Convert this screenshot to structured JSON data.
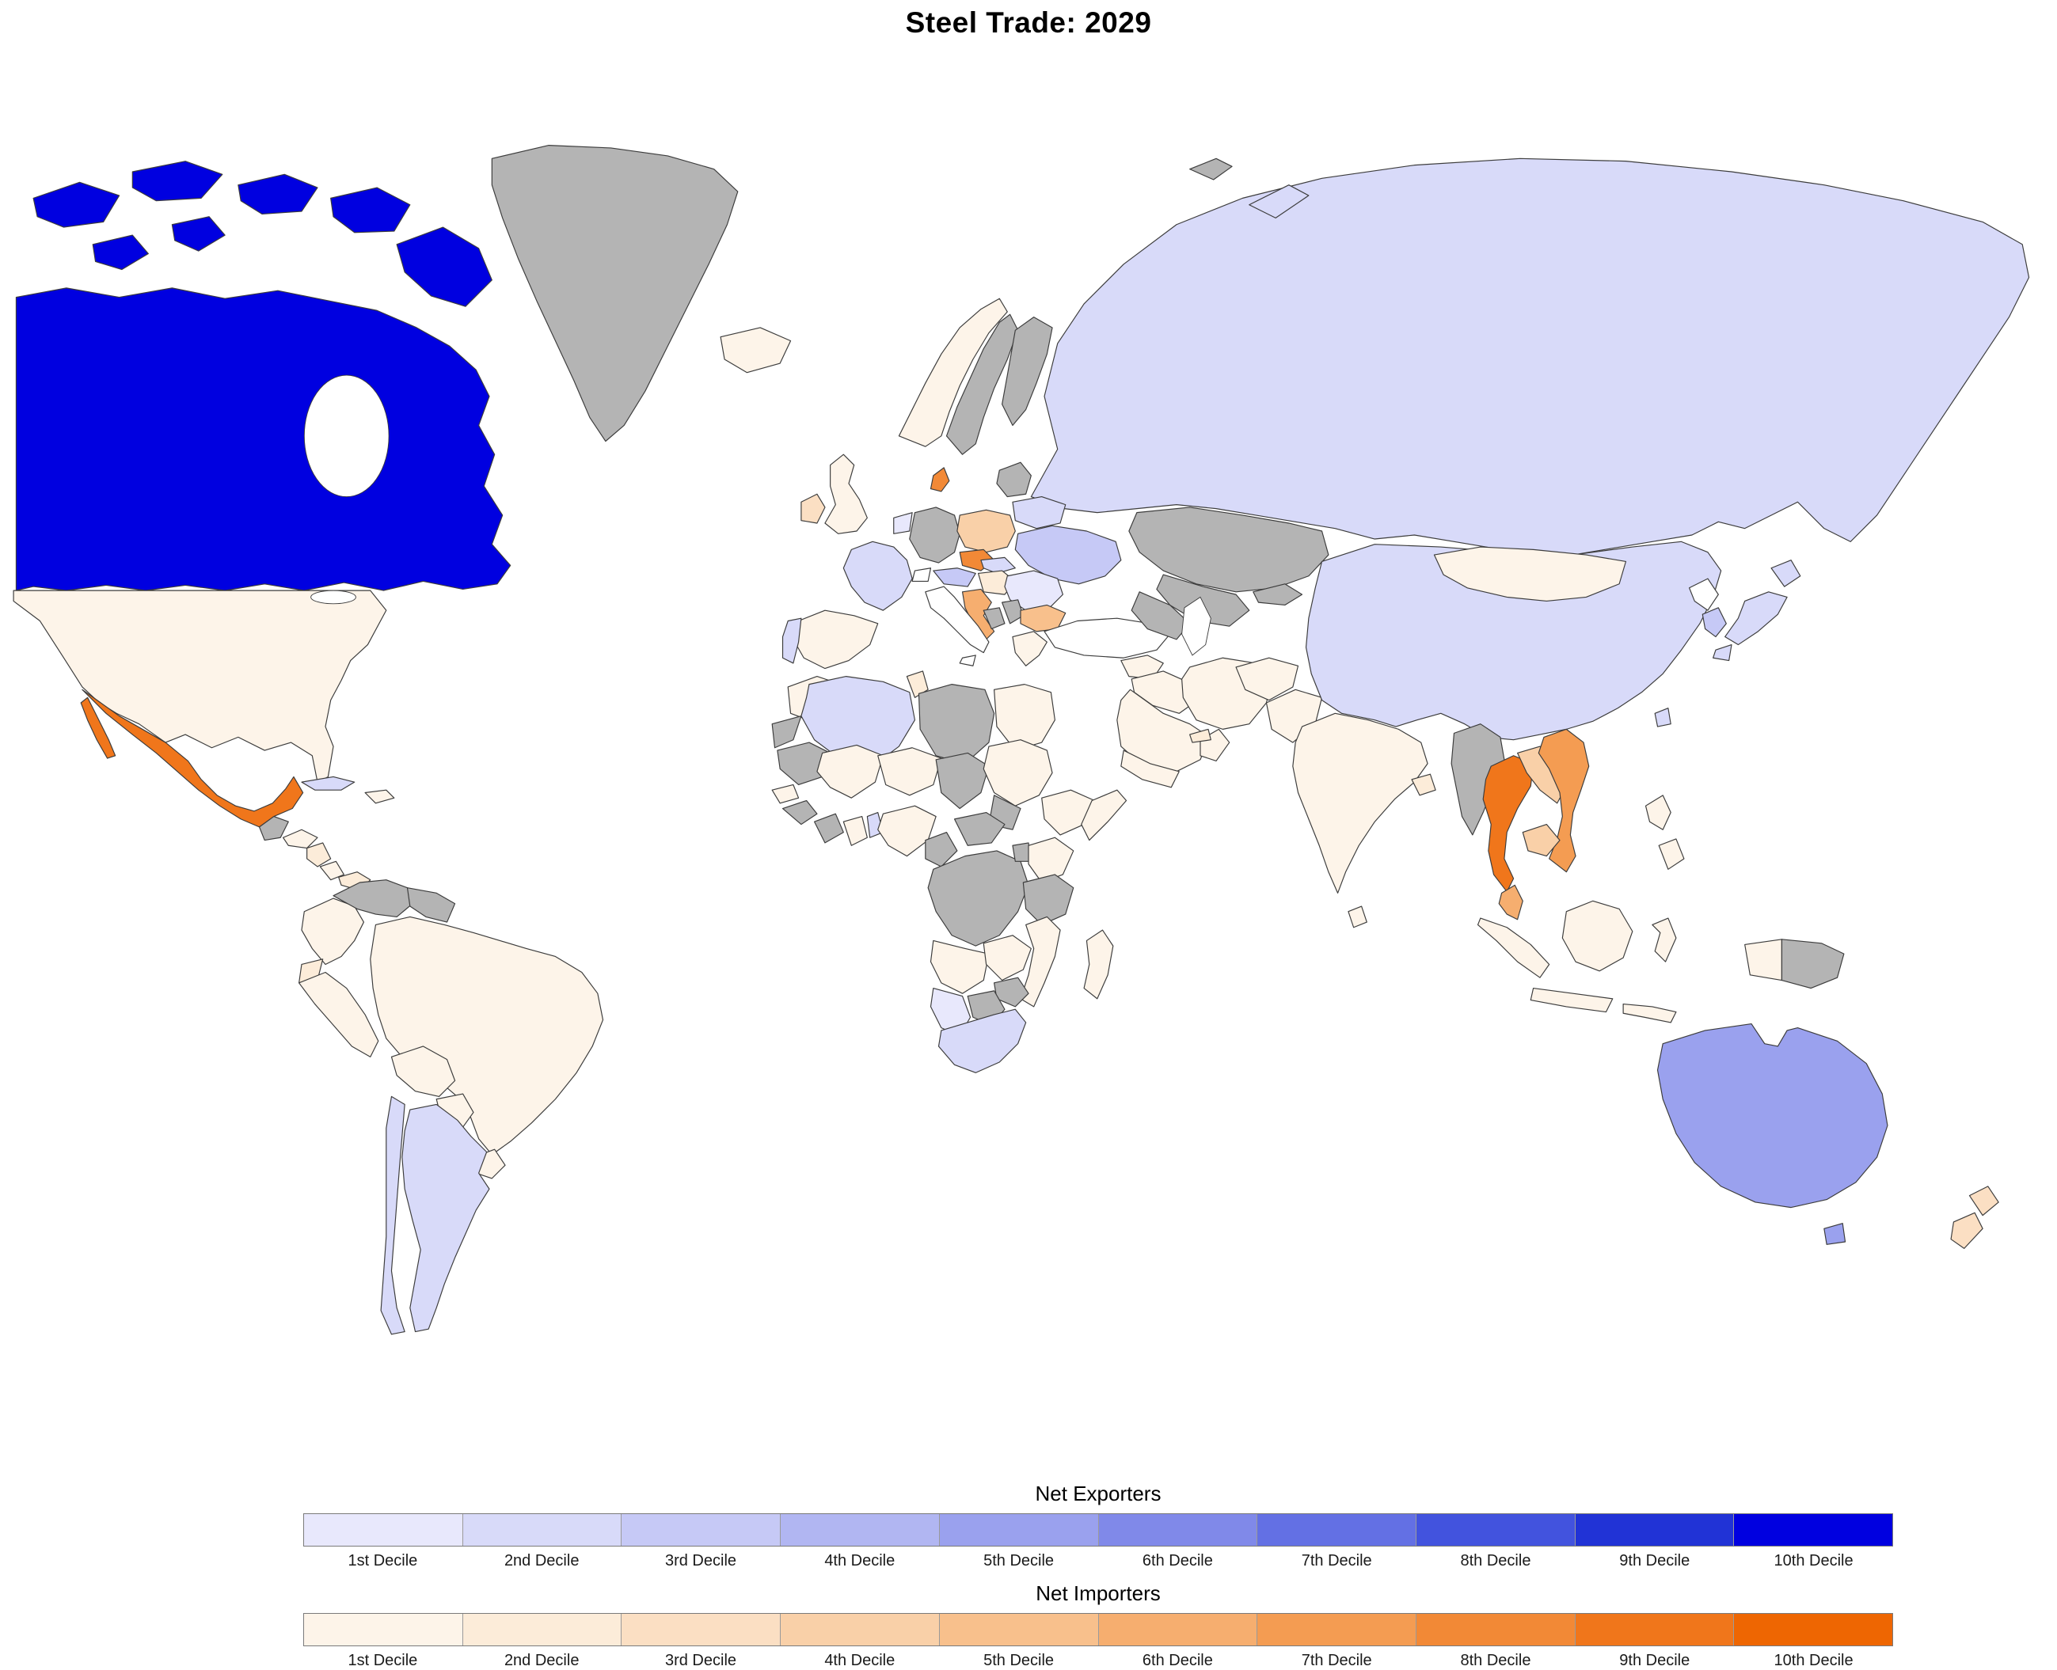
{
  "title": "Steel Trade: 2029",
  "legend": {
    "exporters": {
      "title": "Net Exporters",
      "deciles": [
        "1st Decile",
        "2nd Decile",
        "3rd Decile",
        "4th Decile",
        "5th Decile",
        "6th Decile",
        "7th Decile",
        "8th Decile",
        "9th Decile",
        "10th Decile"
      ],
      "colors": [
        "#e8e8fc",
        "#d8daf9",
        "#c6c9f6",
        "#b1b6f2",
        "#9aa1ee",
        "#8089e9",
        "#6370e4",
        "#4253de",
        "#2133d6",
        "#0000e0"
      ]
    },
    "importers": {
      "title": "Net Importers",
      "deciles": [
        "1st Decile",
        "2nd Decile",
        "3rd Decile",
        "4th Decile",
        "5th Decile",
        "6th Decile",
        "7th Decile",
        "8th Decile",
        "9th Decile",
        "10th Decile"
      ],
      "colors": [
        "#fdf4e9",
        "#fcecd9",
        "#fbdfc3",
        "#f9d0a8",
        "#f8c08c",
        "#f6ae6f",
        "#f49c52",
        "#f28936",
        "#f0761b",
        "#ee6602"
      ]
    }
  },
  "map": {
    "no_data_color": "#b4b4b4",
    "none_color": "#ffffff",
    "ocean_color": "#ffffff",
    "border_color": "#3c3c3c",
    "countries": {
      "canada": {
        "name": "Canada",
        "category": "exporter",
        "decile": 10
      },
      "russia": {
        "name": "Russia",
        "category": "exporter",
        "decile": 2
      },
      "china": {
        "name": "China",
        "category": "exporter",
        "decile": 2
      },
      "japan": {
        "name": "Japan",
        "category": "exporter",
        "decile": 2
      },
      "south-korea": {
        "name": "South Korea",
        "category": "exporter",
        "decile": 3
      },
      "taiwan": {
        "name": "Taiwan",
        "category": "exporter",
        "decile": 2
      },
      "australia": {
        "name": "Australia",
        "category": "exporter",
        "decile": 5
      },
      "argentina": {
        "name": "Argentina",
        "category": "exporter",
        "decile": 2
      },
      "chile": {
        "name": "Chile",
        "category": "exporter",
        "decile": 2
      },
      "cuba": {
        "name": "Cuba",
        "category": "exporter",
        "decile": 2
      },
      "france": {
        "name": "France",
        "category": "exporter",
        "decile": 2
      },
      "netherlands": {
        "name": "Netherlands",
        "category": "exporter",
        "decile": 1
      },
      "portugal": {
        "name": "Portugal",
        "category": "exporter",
        "decile": 2
      },
      "austria": {
        "name": "Austria",
        "category": "exporter",
        "decile": 3
      },
      "slovakia": {
        "name": "Slovakia",
        "category": "exporter",
        "decile": 2
      },
      "belarus": {
        "name": "Belarus",
        "category": "exporter",
        "decile": 2
      },
      "ukraine": {
        "name": "Ukraine",
        "category": "exporter",
        "decile": 3
      },
      "romania": {
        "name": "Romania",
        "category": "exporter",
        "decile": 1
      },
      "algeria": {
        "name": "Algeria",
        "category": "exporter",
        "decile": 2
      },
      "namibia": {
        "name": "Namibia",
        "category": "exporter",
        "decile": 1
      },
      "south-africa": {
        "name": "South Africa",
        "category": "exporter",
        "decile": 2
      },
      "benin": {
        "name": "Benin",
        "category": "exporter",
        "decile": 2
      },
      "usa": {
        "name": "United States",
        "category": "importer",
        "decile": 1
      },
      "mexico": {
        "name": "Mexico",
        "category": "importer",
        "decile": 9
      },
      "honduras": {
        "name": "Honduras",
        "category": "importer",
        "decile": 1
      },
      "nicaragua": {
        "name": "Nicaragua",
        "category": "importer",
        "decile": 2
      },
      "costa-rica": {
        "name": "Costa Rica",
        "category": "importer",
        "decile": 1
      },
      "panama": {
        "name": "Panama",
        "category": "importer",
        "decile": 2
      },
      "dominican-republic": {
        "name": "Dominican Republic",
        "category": "importer",
        "decile": 1
      },
      "colombia": {
        "name": "Colombia",
        "category": "importer",
        "decile": 1
      },
      "ecuador": {
        "name": "Ecuador",
        "category": "importer",
        "decile": 2
      },
      "peru": {
        "name": "Peru",
        "category": "importer",
        "decile": 1
      },
      "brazil": {
        "name": "Brazil",
        "category": "importer",
        "decile": 1
      },
      "bolivia": {
        "name": "Bolivia",
        "category": "importer",
        "decile": 1
      },
      "paraguay": {
        "name": "Paraguay",
        "category": "importer",
        "decile": 1
      },
      "uruguay": {
        "name": "Uruguay",
        "category": "importer",
        "decile": 1
      },
      "iceland": {
        "name": "Iceland",
        "category": "importer",
        "decile": 1
      },
      "norway": {
        "name": "Norway",
        "category": "importer",
        "decile": 1
      },
      "uk": {
        "name": "United Kingdom",
        "category": "importer",
        "decile": 1
      },
      "ireland": {
        "name": "Ireland",
        "category": "importer",
        "decile": 3
      },
      "spain": {
        "name": "Spain",
        "category": "importer",
        "decile": 1
      },
      "denmark": {
        "name": "Denmark",
        "category": "importer",
        "decile": 8
      },
      "poland": {
        "name": "Poland",
        "category": "importer",
        "decile": 4
      },
      "czechia": {
        "name": "Czechia",
        "category": "importer",
        "decile": 8
      },
      "hungary": {
        "name": "Hungary",
        "category": "importer",
        "decile": 2
      },
      "croatia": {
        "name": "Croatia",
        "category": "importer",
        "decile": 6
      },
      "bulgaria": {
        "name": "Bulgaria",
        "category": "importer",
        "decile": 5
      },
      "greece": {
        "name": "Greece",
        "category": "importer",
        "decile": 1
      },
      "morocco": {
        "name": "Morocco",
        "category": "importer",
        "decile": 1
      },
      "tunisia": {
        "name": "Tunisia",
        "category": "importer",
        "decile": 2
      },
      "egypt": {
        "name": "Egypt",
        "category": "importer",
        "decile": 1
      },
      "mali": {
        "name": "Mali",
        "category": "importer",
        "decile": 1
      },
      "niger": {
        "name": "Niger",
        "category": "importer",
        "decile": 1
      },
      "senegal": {
        "name": "Senegal",
        "category": "importer",
        "decile": 1
      },
      "ghana": {
        "name": "Ghana",
        "category": "importer",
        "decile": 1
      },
      "nigeria": {
        "name": "Nigeria",
        "category": "importer",
        "decile": 1
      },
      "sudan": {
        "name": "Sudan",
        "category": "importer",
        "decile": 1
      },
      "ethiopia": {
        "name": "Ethiopia",
        "category": "importer",
        "decile": 1
      },
      "somalia": {
        "name": "Somalia",
        "category": "importer",
        "decile": 1
      },
      "kenya": {
        "name": "Kenya",
        "category": "importer",
        "decile": 1
      },
      "angola": {
        "name": "Angola",
        "category": "importer",
        "decile": 1
      },
      "zambia": {
        "name": "Zambia",
        "category": "importer",
        "decile": 1
      },
      "mozambique": {
        "name": "Mozambique",
        "category": "importer",
        "decile": 1
      },
      "madagascar": {
        "name": "Madagascar",
        "category": "importer",
        "decile": 1
      },
      "saudi-arabia": {
        "name": "Saudi Arabia",
        "category": "importer",
        "decile": 1
      },
      "yemen": {
        "name": "Yemen",
        "category": "importer",
        "decile": 1
      },
      "oman": {
        "name": "Oman",
        "category": "importer",
        "decile": 1
      },
      "uae": {
        "name": "United Arab Emirates",
        "category": "importer",
        "decile": 2
      },
      "syria": {
        "name": "Syria",
        "category": "importer",
        "decile": 1
      },
      "iraq": {
        "name": "Iraq",
        "category": "importer",
        "decile": 1
      },
      "iran": {
        "name": "Iran",
        "category": "importer",
        "decile": 1
      },
      "afghanistan": {
        "name": "Afghanistan",
        "category": "importer",
        "decile": 1
      },
      "pakistan": {
        "name": "Pakistan",
        "category": "importer",
        "decile": 1
      },
      "india": {
        "name": "India",
        "category": "importer",
        "decile": 1
      },
      "bangladesh": {
        "name": "Bangladesh",
        "category": "importer",
        "decile": 2
      },
      "sri-lanka": {
        "name": "Sri Lanka",
        "category": "importer",
        "decile": 1
      },
      "mongolia": {
        "name": "Mongolia",
        "category": "importer",
        "decile": 1
      },
      "thailand": {
        "name": "Thailand",
        "category": "importer",
        "decile": 9
      },
      "laos": {
        "name": "Laos",
        "category": "importer",
        "decile": 4
      },
      "cambodia": {
        "name": "Cambodia",
        "category": "importer",
        "decile": 4
      },
      "vietnam": {
        "name": "Vietnam",
        "category": "importer",
        "decile": 7
      },
      "malaysia": {
        "name": "Malaysia",
        "category": "importer",
        "decile": 6
      },
      "indonesia": {
        "name": "Indonesia",
        "category": "importer",
        "decile": 1
      },
      "philippines": {
        "name": "Philippines",
        "category": "importer",
        "decile": 1
      },
      "new-zealand": {
        "name": "New Zealand",
        "category": "importer",
        "decile": 3
      },
      "greenland": {
        "name": "Greenland",
        "category": "no-data"
      },
      "sweden": {
        "name": "Sweden",
        "category": "no-data"
      },
      "finland": {
        "name": "Finland",
        "category": "no-data"
      },
      "germany": {
        "name": "Germany",
        "category": "no-data"
      },
      "lithuania": {
        "name": "Lithuania",
        "category": "no-data"
      },
      "bosnia": {
        "name": "Bosnia and Herzegovina",
        "category": "no-data"
      },
      "serbia": {
        "name": "Serbia",
        "category": "no-data"
      },
      "guatemala": {
        "name": "Guatemala",
        "category": "no-data"
      },
      "venezuela": {
        "name": "Venezuela",
        "category": "no-data"
      },
      "guyana": {
        "name": "Guyana",
        "category": "no-data"
      },
      "western-sahara": {
        "name": "Western Sahara",
        "category": "no-data"
      },
      "libya": {
        "name": "Libya",
        "category": "no-data"
      },
      "mauritania": {
        "name": "Mauritania",
        "category": "no-data"
      },
      "chad": {
        "name": "Chad",
        "category": "no-data"
      },
      "guinea": {
        "name": "Guinea",
        "category": "no-data"
      },
      "cote-divoire": {
        "name": "Cote d'Ivoire",
        "category": "no-data"
      },
      "cameroon": {
        "name": "Cameroon",
        "category": "no-data"
      },
      "central-african-republic": {
        "name": "Central African Republic",
        "category": "no-data"
      },
      "south-sudan": {
        "name": "South Sudan",
        "category": "no-data"
      },
      "dr-congo": {
        "name": "DR Congo",
        "category": "no-data"
      },
      "uganda": {
        "name": "Uganda",
        "category": "no-data"
      },
      "tanzania": {
        "name": "Tanzania",
        "category": "no-data"
      },
      "zimbabwe": {
        "name": "Zimbabwe",
        "category": "no-data"
      },
      "botswana": {
        "name": "Botswana",
        "category": "no-data"
      },
      "kazakhstan": {
        "name": "Kazakhstan",
        "category": "no-data"
      },
      "uzbekistan": {
        "name": "Uzbekistan",
        "category": "no-data"
      },
      "turkmenistan": {
        "name": "Turkmenistan",
        "category": "no-data"
      },
      "kyrgyzstan": {
        "name": "Kyrgyzstan",
        "category": "no-data"
      },
      "myanmar": {
        "name": "Myanmar",
        "category": "no-data"
      },
      "papua-new-guinea": {
        "name": "Papua New Guinea",
        "category": "no-data"
      },
      "svalbard": {
        "name": "Svalbard",
        "category": "no-data"
      },
      "italy": {
        "name": "Italy",
        "category": "none"
      },
      "turkey": {
        "name": "Turkey",
        "category": "none"
      },
      "switzerland": {
        "name": "Switzerland",
        "category": "none"
      },
      "north-korea": {
        "name": "North Korea",
        "category": "none"
      }
    }
  }
}
